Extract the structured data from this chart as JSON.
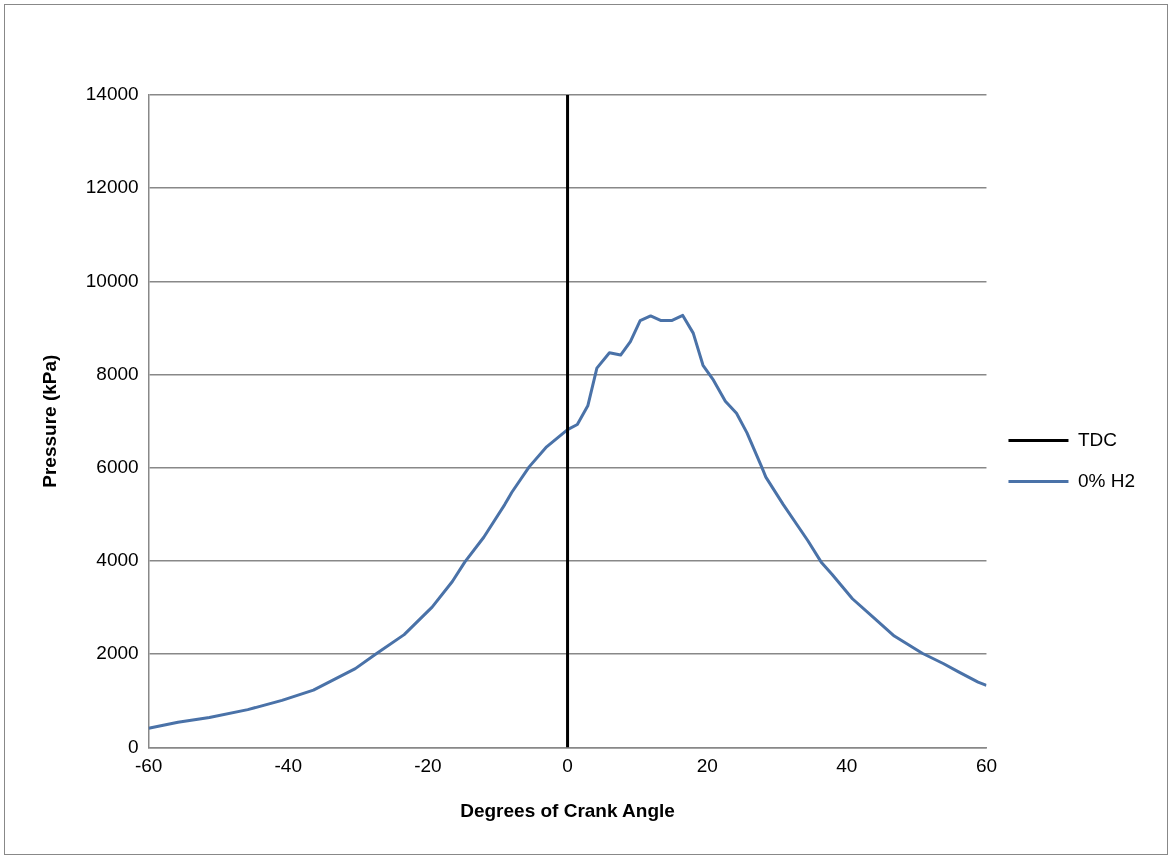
{
  "chart_data": {
    "type": "line",
    "xlabel": "Degrees of Crank Angle",
    "ylabel": "Pressure (kPa)",
    "xlim": [
      -60,
      60
    ],
    "xticks": [
      -60,
      -40,
      -20,
      0,
      20,
      40,
      60
    ],
    "ylim": [
      0,
      14000
    ],
    "yticks": [
      0,
      2000,
      4000,
      6000,
      8000,
      10000,
      12000,
      14000
    ],
    "grid": "y",
    "legend": "right",
    "marker": "none",
    "line_style": "solid",
    "series": [
      {
        "name": "TDC",
        "color": "#000000",
        "x": [
          0,
          0
        ],
        "values": [
          0,
          14000
        ]
      },
      {
        "name": "0% H2",
        "color": "#4a72a8",
        "x": [
          -60,
          -55.8,
          -51.3,
          -45.8,
          -40.9,
          -36.4,
          -30.4,
          -27.4,
          -23.4,
          -19.4,
          -16.5,
          -14.7,
          -12.0,
          -9.0,
          -8.0,
          -5.5,
          -3.0,
          0,
          1.4,
          2.9,
          4.2,
          6.0,
          7.6,
          9.0,
          10.4,
          11.9,
          13.4,
          14.9,
          16.5,
          18.0,
          19.4,
          20.9,
          22.6,
          24.2,
          25.7,
          27.8,
          28.4,
          30.9,
          34.4,
          36.4,
          37.9,
          40.8,
          43.8,
          46.8,
          50.8,
          53.8,
          56.0,
          58.8,
          60
        ],
        "values": [
          410,
          540,
          640,
          810,
          1010,
          1230,
          1690,
          2010,
          2420,
          3010,
          3560,
          3980,
          4510,
          5210,
          5470,
          6020,
          6450,
          6820,
          6930,
          7330,
          8140,
          8470,
          8420,
          8710,
          9160,
          9260,
          9160,
          9160,
          9270,
          8890,
          8200,
          7880,
          7430,
          7170,
          6750,
          6020,
          5800,
          5210,
          4440,
          3960,
          3710,
          3190,
          2790,
          2390,
          2020,
          1800,
          1620,
          1400,
          1330
        ]
      }
    ]
  }
}
